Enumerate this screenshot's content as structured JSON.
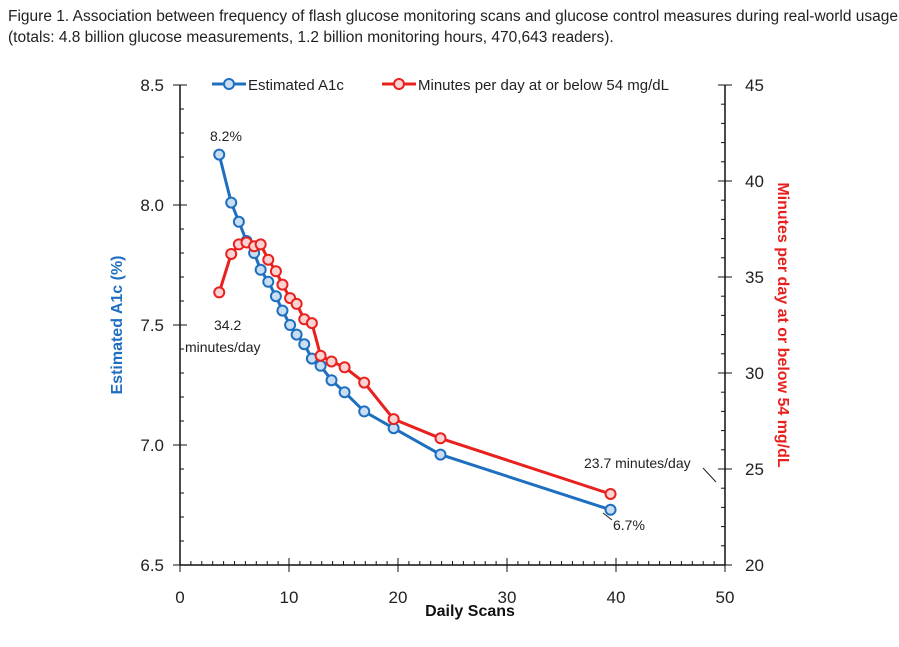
{
  "caption": {
    "line1": "Figure 1.  Association between frequency of flash glucose monitoring scans and glucose control measures during real-world usage",
    "line2": "(totals: 4.8 billion glucose measurements, 1.2 billion monitoring hours, 470,643 readers)."
  },
  "chart_data": {
    "type": "line",
    "xlabel": "Daily Scans",
    "ylabel_left": "Estimated A1c (%)",
    "ylabel_right": "Minutes per day at or below 54 mg/dL",
    "xlim": [
      0,
      50
    ],
    "ylim_left": [
      6.5,
      8.5
    ],
    "ylim_right": [
      20,
      45
    ],
    "x_ticks": [
      0,
      10,
      20,
      30,
      40,
      50
    ],
    "y_left_ticks": [
      "6.5",
      "7.0",
      "7.5",
      "8.0",
      "8.5"
    ],
    "y_right_ticks": [
      "20",
      "25",
      "30",
      "35",
      "40",
      "45"
    ],
    "grid": false,
    "legend_position": "top",
    "colors": {
      "a1c": "#1f6fc0",
      "hypo": "#e8211f",
      "left_axis_title": "#1f6fc0",
      "right_axis_title": "#e8211f"
    },
    "series": [
      {
        "name": "Estimated A1c",
        "axis": "left",
        "x": [
          3.6,
          4.7,
          5.4,
          6.1,
          6.8,
          7.4,
          8.1,
          8.8,
          9.4,
          10.1,
          10.7,
          11.4,
          12.1,
          12.9,
          13.9,
          15.1,
          16.9,
          19.6,
          23.9,
          39.5
        ],
        "y": [
          8.21,
          8.01,
          7.93,
          7.85,
          7.8,
          7.73,
          7.68,
          7.62,
          7.56,
          7.5,
          7.46,
          7.42,
          7.36,
          7.33,
          7.27,
          7.22,
          7.14,
          7.07,
          6.96,
          6.73
        ]
      },
      {
        "name": "Minutes per day at or below 54 mg/dL",
        "axis": "right",
        "x": [
          3.6,
          4.7,
          5.4,
          6.1,
          6.8,
          7.4,
          8.1,
          8.8,
          9.4,
          10.1,
          10.7,
          11.4,
          12.1,
          12.9,
          13.9,
          15.1,
          16.9,
          19.6,
          23.9,
          39.5
        ],
        "y": [
          34.2,
          36.2,
          36.7,
          36.8,
          36.6,
          36.7,
          35.9,
          35.3,
          34.6,
          33.9,
          33.6,
          32.8,
          32.6,
          30.9,
          30.6,
          30.3,
          29.5,
          27.6,
          26.6,
          23.7
        ]
      }
    ],
    "annotations": {
      "a1c_start": "8.2%",
      "hypo_start_line1": "34.2",
      "hypo_start_line2": "minutes/day",
      "hypo_end": "23.7 minutes/day",
      "a1c_end": "6.7%"
    }
  }
}
